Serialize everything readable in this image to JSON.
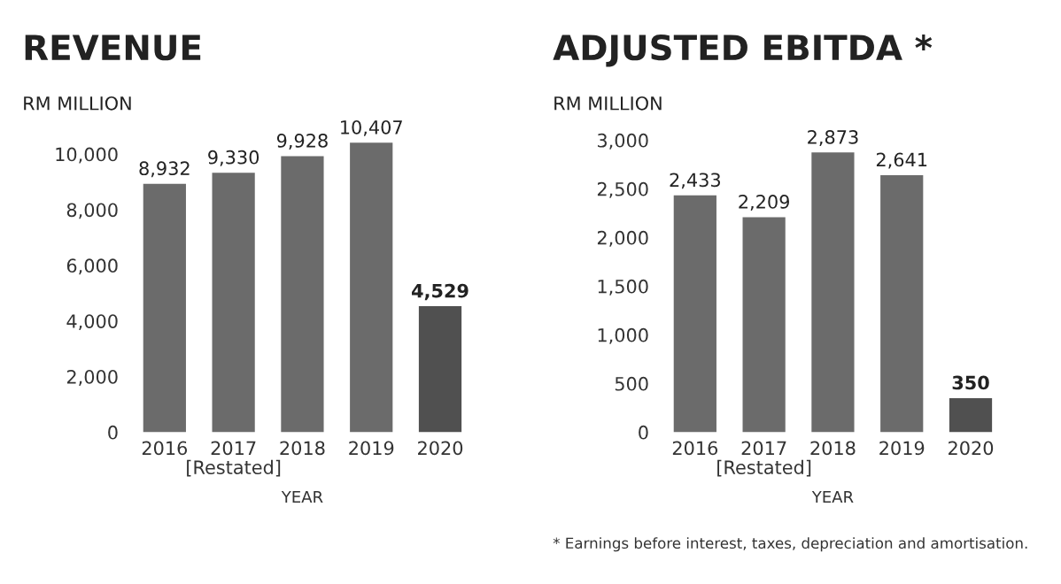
{
  "chart_data": [
    {
      "type": "bar",
      "title": "REVENUE",
      "ylabel": "RM MILLION",
      "xlabel": "YEAR",
      "categories": [
        "2016",
        "2017\n[Restated]",
        "2018",
        "2019",
        "2020"
      ],
      "values": [
        8932,
        9330,
        9928,
        10407,
        4529
      ],
      "colors": [
        "#6b6b6b",
        "#6b6b6b",
        "#6b6b6b",
        "#6b6b6b",
        "#505050"
      ],
      "value_labels": [
        "8,932",
        "9,330",
        "9,928",
        "10,407",
        "4,529"
      ],
      "ylim": [
        0,
        10500
      ],
      "yticks": [
        0,
        {
          "value": 2000,
          "label": "2,000"
        },
        {
          "value": 4000,
          "label": "4,000"
        },
        {
          "value": 6000,
          "label": "6,000"
        },
        {
          "value": 8000,
          "label": "8,000"
        },
        {
          "value": 10000,
          "label": "10,000"
        }
      ],
      "grid": false,
      "legend": false
    },
    {
      "type": "bar",
      "title": "ADJUSTED EBITDA *",
      "ylabel": "RM MILLION",
      "xlabel": "YEAR",
      "categories": [
        "2016",
        "2017\n[Restated]",
        "2018",
        "2019",
        "2020"
      ],
      "values": [
        2433,
        2209,
        2873,
        2641,
        350
      ],
      "colors": [
        "#6b6b6b",
        "#6b6b6b",
        "#6b6b6b",
        "#6b6b6b",
        "#505050"
      ],
      "value_labels": [
        "2,433",
        "2,209",
        "2,873",
        "2,641",
        "350"
      ],
      "ylim": [
        0,
        3000
      ],
      "yticks": [
        0,
        500,
        {
          "value": 1000,
          "label": "1,000"
        },
        {
          "value": 1500,
          "label": "1,500"
        },
        {
          "value": 2000,
          "label": "2,000"
        },
        {
          "value": 2500,
          "label": "2,500"
        },
        {
          "value": 3000,
          "label": "3,000"
        }
      ],
      "grid": false,
      "legend": false,
      "annotations": [
        "* Earnings before interest, taxes, depreciation and amortisation."
      ]
    }
  ]
}
